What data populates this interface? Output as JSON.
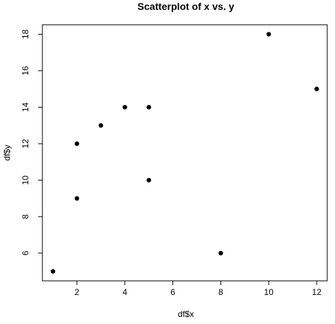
{
  "chart_data": {
    "type": "scatter",
    "title": "Scatterplot of x vs. y",
    "xlabel": "df$x",
    "ylabel": "df$y",
    "xlim": [
      0.56,
      12.44
    ],
    "ylim": [
      4.48,
      18.52
    ],
    "x_ticks": [
      2,
      4,
      6,
      8,
      10,
      12
    ],
    "y_ticks": [
      6,
      8,
      10,
      12,
      14,
      16,
      18
    ],
    "grid": false,
    "points": [
      {
        "x": 1,
        "y": 5
      },
      {
        "x": 2,
        "y": 12
      },
      {
        "x": 2,
        "y": 9
      },
      {
        "x": 3,
        "y": 13
      },
      {
        "x": 4,
        "y": 14
      },
      {
        "x": 5,
        "y": 14
      },
      {
        "x": 5,
        "y": 10
      },
      {
        "x": 8,
        "y": 6
      },
      {
        "x": 10,
        "y": 18
      },
      {
        "x": 12,
        "y": 15
      }
    ],
    "point_color": "#000000"
  }
}
